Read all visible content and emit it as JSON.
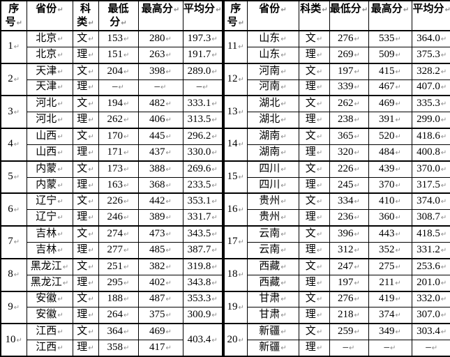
{
  "marks": {
    "paragraph": "↵"
  },
  "colors": {
    "text": "#000000",
    "background": "#ffffff",
    "border": "#000000",
    "paragraph_mark": "#8a8a8a"
  },
  "tables": [
    {
      "id": "left",
      "header": {
        "seq": "序\n号",
        "province": "省份",
        "category": "科\n类",
        "min": "最低\n分",
        "max": "最高分",
        "avg": "平均分"
      },
      "groups": [
        {
          "no": "1",
          "province": "北京",
          "rows": [
            {
              "category": "文",
              "min": "153",
              "max": "280",
              "avg": "197.3"
            },
            {
              "category": "理",
              "min": "151",
              "max": "263",
              "avg": "191.7"
            }
          ]
        },
        {
          "no": "2",
          "province": "天津",
          "rows": [
            {
              "category": "文",
              "min": "204",
              "max": "398",
              "avg": "289.0"
            },
            {
              "category": "理",
              "min": "–",
              "max": "–",
              "avg": "–"
            }
          ]
        },
        {
          "no": "3",
          "province": "河北",
          "rows": [
            {
              "category": "文",
              "min": "194",
              "max": "482",
              "avg": "333.1"
            },
            {
              "category": "理",
              "min": "262",
              "max": "406",
              "avg": "313.5"
            }
          ]
        },
        {
          "no": "4",
          "province": "山西",
          "rows": [
            {
              "category": "文",
              "min": "170",
              "max": "445",
              "avg": "296.2"
            },
            {
              "category": "理",
              "min": "171",
              "max": "437",
              "avg": "330.0"
            }
          ]
        },
        {
          "no": "5",
          "province": "内蒙",
          "rows": [
            {
              "category": "文",
              "min": "173",
              "max": "388",
              "avg": "269.6"
            },
            {
              "category": "理",
              "min": "163",
              "max": "368",
              "avg": "233.5"
            }
          ]
        },
        {
          "no": "6",
          "province": "辽宁",
          "rows": [
            {
              "category": "文",
              "min": "226",
              "max": "442",
              "avg": "353.1"
            },
            {
              "category": "理",
              "min": "246",
              "max": "389",
              "avg": "331.7"
            }
          ]
        },
        {
          "no": "7",
          "province": "吉林",
          "rows": [
            {
              "category": "文",
              "min": "274",
              "max": "473",
              "avg": "343.5"
            },
            {
              "category": "理",
              "min": "277",
              "max": "485",
              "avg": "387.7"
            }
          ]
        },
        {
          "no": "8",
          "province": "黑龙江",
          "rows": [
            {
              "category": "文",
              "min": "251",
              "max": "382",
              "avg": "319.8"
            },
            {
              "category": "理",
              "min": "295",
              "max": "402",
              "avg": "343.8"
            }
          ]
        },
        {
          "no": "9",
          "province": "安徽",
          "rows": [
            {
              "category": "文",
              "min": "188",
              "max": "487",
              "avg": "353.3"
            },
            {
              "category": "理",
              "min": "264",
              "max": "375",
              "avg": "300.9"
            }
          ]
        },
        {
          "no": "10",
          "province": "江西",
          "merged_avg": "403.4",
          "rows": [
            {
              "category": "文",
              "min": "364",
              "max": "469"
            },
            {
              "category": "理",
              "min": "358",
              "max": "417"
            }
          ]
        }
      ]
    },
    {
      "id": "right",
      "header": {
        "seq": "序\n号",
        "province": "省份",
        "category": "科类",
        "min": "最低分",
        "max": "最高分",
        "avg": "平均分"
      },
      "groups": [
        {
          "no": "11",
          "province": "山东",
          "rows": [
            {
              "category": "文",
              "min": "276",
              "max": "535",
              "avg": "364.0"
            },
            {
              "category": "理",
              "min": "269",
              "max": "509",
              "avg": "375.3"
            }
          ]
        },
        {
          "no": "12",
          "province": "河南",
          "rows": [
            {
              "category": "文",
              "min": "197",
              "max": "415",
              "avg": "328.2"
            },
            {
              "category": "理",
              "min": "339",
              "max": "467",
              "avg": "407.0"
            }
          ]
        },
        {
          "no": "13",
          "province": "湖北",
          "rows": [
            {
              "category": "文",
              "min": "262",
              "max": "469",
              "avg": "335.3"
            },
            {
              "category": "理",
              "min": "238",
              "max": "391",
              "avg": "299.0"
            }
          ]
        },
        {
          "no": "14",
          "province": "湖南",
          "rows": [
            {
              "category": "文",
              "min": "365",
              "max": "520",
              "avg": "418.6"
            },
            {
              "category": "理",
              "min": "320",
              "max": "484",
              "avg": "400.8"
            }
          ]
        },
        {
          "no": "15",
          "province": "四川",
          "rows": [
            {
              "category": "文",
              "min": "226",
              "max": "439",
              "avg": "370.0"
            },
            {
              "category": "理",
              "min": "245",
              "max": "370",
              "avg": "317.5"
            }
          ]
        },
        {
          "no": "16",
          "province": "贵州",
          "rows": [
            {
              "category": "文",
              "min": "334",
              "max": "410",
              "avg": "374.0"
            },
            {
              "category": "理",
              "min": "236",
              "max": "360",
              "avg": "308.7"
            }
          ]
        },
        {
          "no": "17",
          "province": "云南",
          "rows": [
            {
              "category": "文",
              "min": "396",
              "max": "443",
              "avg": "418.5"
            },
            {
              "category": "理",
              "min": "312",
              "max": "352",
              "avg": "331.2"
            }
          ]
        },
        {
          "no": "18",
          "province": "西藏",
          "rows": [
            {
              "category": "文",
              "min": "247",
              "max": "275",
              "avg": "253.6"
            },
            {
              "category": "理",
              "min": "197",
              "max": "211",
              "avg": "201.0"
            }
          ]
        },
        {
          "no": "19",
          "province": "甘肃",
          "rows": [
            {
              "category": "文",
              "min": "276",
              "max": "419",
              "avg": "332.0"
            },
            {
              "category": "理",
              "min": "218",
              "max": "374",
              "avg": "307.0"
            }
          ]
        },
        {
          "no": "20",
          "province": "新疆",
          "rows": [
            {
              "category": "文",
              "min": "259",
              "max": "349",
              "avg": "303.4"
            },
            {
              "category": "理",
              "min": "–",
              "max": "–",
              "avg": "–"
            }
          ]
        }
      ]
    }
  ]
}
